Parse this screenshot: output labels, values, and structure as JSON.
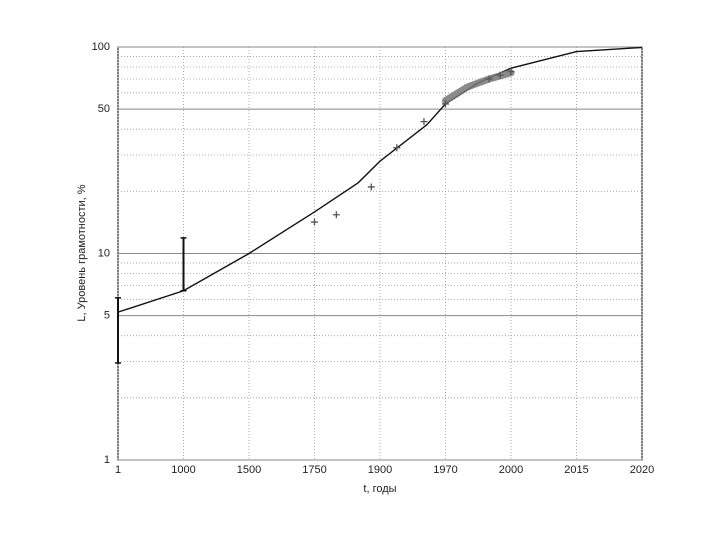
{
  "chart_data": {
    "type": "line",
    "xlabel": "t, годы",
    "ylabel": "L, Уровень грамотности, %",
    "xticks": [
      1,
      1000,
      1500,
      1750,
      1900,
      1970,
      2000,
      2015,
      2020
    ],
    "xlim": [
      1,
      2020
    ],
    "ylim": [
      1,
      100
    ],
    "yticks": [
      1,
      5,
      10,
      50,
      100
    ],
    "yminor": [
      2,
      3,
      4,
      6,
      7,
      8,
      9,
      20,
      30,
      40,
      60,
      70,
      80,
      90
    ],
    "log_y": true,
    "grid": true,
    "series": [
      {
        "kind": "line",
        "color": "#111111",
        "x": [
          1,
          1000,
          1500,
          1750,
          1850,
          1900,
          1950,
          1970,
          1985,
          2000,
          2015,
          2020
        ],
        "values": [
          5.2,
          6.6,
          10,
          15.9,
          22,
          28,
          42,
          53,
          67,
          79,
          95,
          99.5
        ]
      },
      {
        "kind": "band",
        "color": "#777777",
        "x": [
          1970,
          1980,
          1990,
          2000
        ],
        "values": [
          55,
          64,
          70,
          75
        ]
      },
      {
        "kind": "scatter",
        "color": "#555555",
        "x": [
          1750,
          1800,
          1880,
          1918,
          1947,
          1970,
          1990,
          1995,
          2000
        ],
        "values": [
          14.2,
          15.4,
          21,
          32.5,
          43.5,
          53,
          70,
          73,
          76
        ]
      }
    ],
    "error_bars": {
      "color": "#111111",
      "x": [
        1,
        1000
      ],
      "low": [
        2.95,
        6.6
      ],
      "high": [
        6.1,
        11.9
      ]
    }
  }
}
